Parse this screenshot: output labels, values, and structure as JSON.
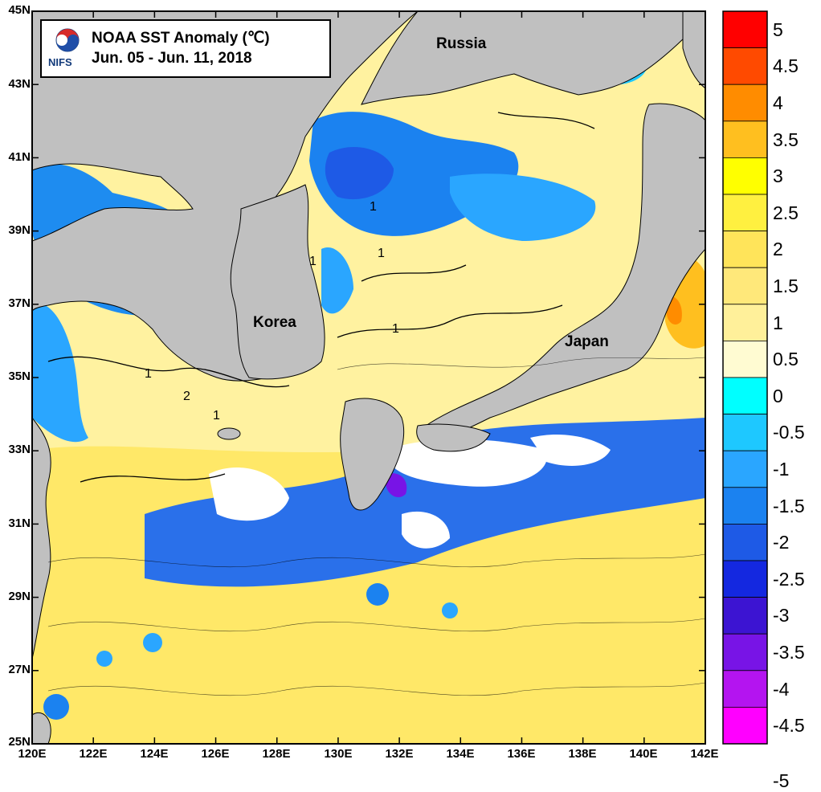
{
  "title": {
    "line1": "NOAA SST Anomaly (℃)",
    "line2": "Jun. 05 - Jun. 11, 2018",
    "logo_text": "NIFS"
  },
  "places": {
    "russia": "Russia",
    "korea": "Korea",
    "japan": "Japan"
  },
  "lat_ticks": [
    "45N",
    "43N",
    "41N",
    "39N",
    "37N",
    "35N",
    "33N",
    "31N",
    "29N",
    "27N",
    "25N"
  ],
  "lon_ticks": [
    "120E",
    "122E",
    "124E",
    "126E",
    "128E",
    "130E",
    "132E",
    "134E",
    "136E",
    "138E",
    "140E",
    "142E"
  ],
  "contour_labels": [
    "1",
    "1",
    "1",
    "1",
    "2",
    "1",
    "1"
  ],
  "colorbar": {
    "labels": [
      "5",
      "4.5",
      "4",
      "3.5",
      "3",
      "2.5",
      "2",
      "1.5",
      "1",
      "0.5",
      "0",
      "-0.5",
      "-1",
      "-1.5",
      "-2",
      "-2.5",
      "-3",
      "-3.5",
      "-4",
      "-4.5",
      "-5"
    ],
    "colors": [
      "#ff0000",
      "#ff4a00",
      "#ff8c00",
      "#ffbf1f",
      "#ffff00",
      "#fff040",
      "#ffe45a",
      "#ffe87a",
      "#fff09a",
      "#fffbd2",
      "#00ffff",
      "#1ec8ff",
      "#2aa6ff",
      "#1b82f0",
      "#1e5ae6",
      "#1428e0",
      "#3c14d2",
      "#7814e6",
      "#b414f0",
      "#ff00ff"
    ]
  },
  "colors": {
    "land": "#c0c0c0",
    "sea_positive": "#fff2a0",
    "no_data": "#ffffff"
  }
}
